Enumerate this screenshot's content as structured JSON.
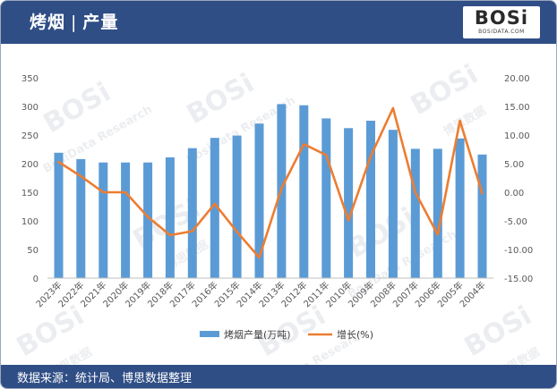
{
  "header": {
    "title_main": "烤烟",
    "title_sep": "|",
    "title_sub": "产量",
    "logo_text": "BOSi",
    "logo_sub": "BOSIDATA.COM"
  },
  "footer": {
    "source": "数据来源：统计局、博思数据整理"
  },
  "watermark": {
    "brand": "BOSi",
    "cn": "博思数据",
    "en": "BosiData Research"
  },
  "chart_data": {
    "type": "bar",
    "categories": [
      "2023年",
      "2022年",
      "2021年",
      "2020年",
      "2019年",
      "2018年",
      "2017年",
      "2016年",
      "2015年",
      "2014年",
      "2013年",
      "2012年",
      "2011年",
      "2010年",
      "2009年",
      "2008年",
      "2007年",
      "2006年",
      "2005年",
      "2004年"
    ],
    "series": [
      {
        "name": "烤烟产量(万吨)",
        "type": "bar",
        "axis": "left",
        "color": "#5b9bd5",
        "values": [
          219,
          208,
          202,
          202,
          202,
          211,
          227,
          245,
          249,
          270,
          304,
          302,
          279,
          262,
          275,
          259,
          226,
          226,
          244,
          216
        ]
      },
      {
        "name": "增长(%)",
        "type": "line",
        "axis": "right",
        "color": "#ed7d31",
        "values": [
          5.3,
          2.8,
          0,
          0,
          -4.3,
          -7.5,
          -6.8,
          -2.0,
          -6.9,
          -11.4,
          0.7,
          8.4,
          6.5,
          -4.9,
          6.3,
          14.7,
          0,
          -7.4,
          12.5,
          -0.2
        ]
      }
    ],
    "y_left": {
      "min": 0,
      "max": 350,
      "ticks": [
        "0",
        "50",
        "100",
        "150",
        "200",
        "250",
        "300",
        "350"
      ]
    },
    "y_right": {
      "min": -15,
      "max": 20,
      "ticks": [
        "-15.00",
        "-10.00",
        "-5.00",
        "0.00",
        "5.00",
        "10.00",
        "15.00",
        "20.00"
      ]
    },
    "legend_position": "bottom",
    "grid": false
  }
}
